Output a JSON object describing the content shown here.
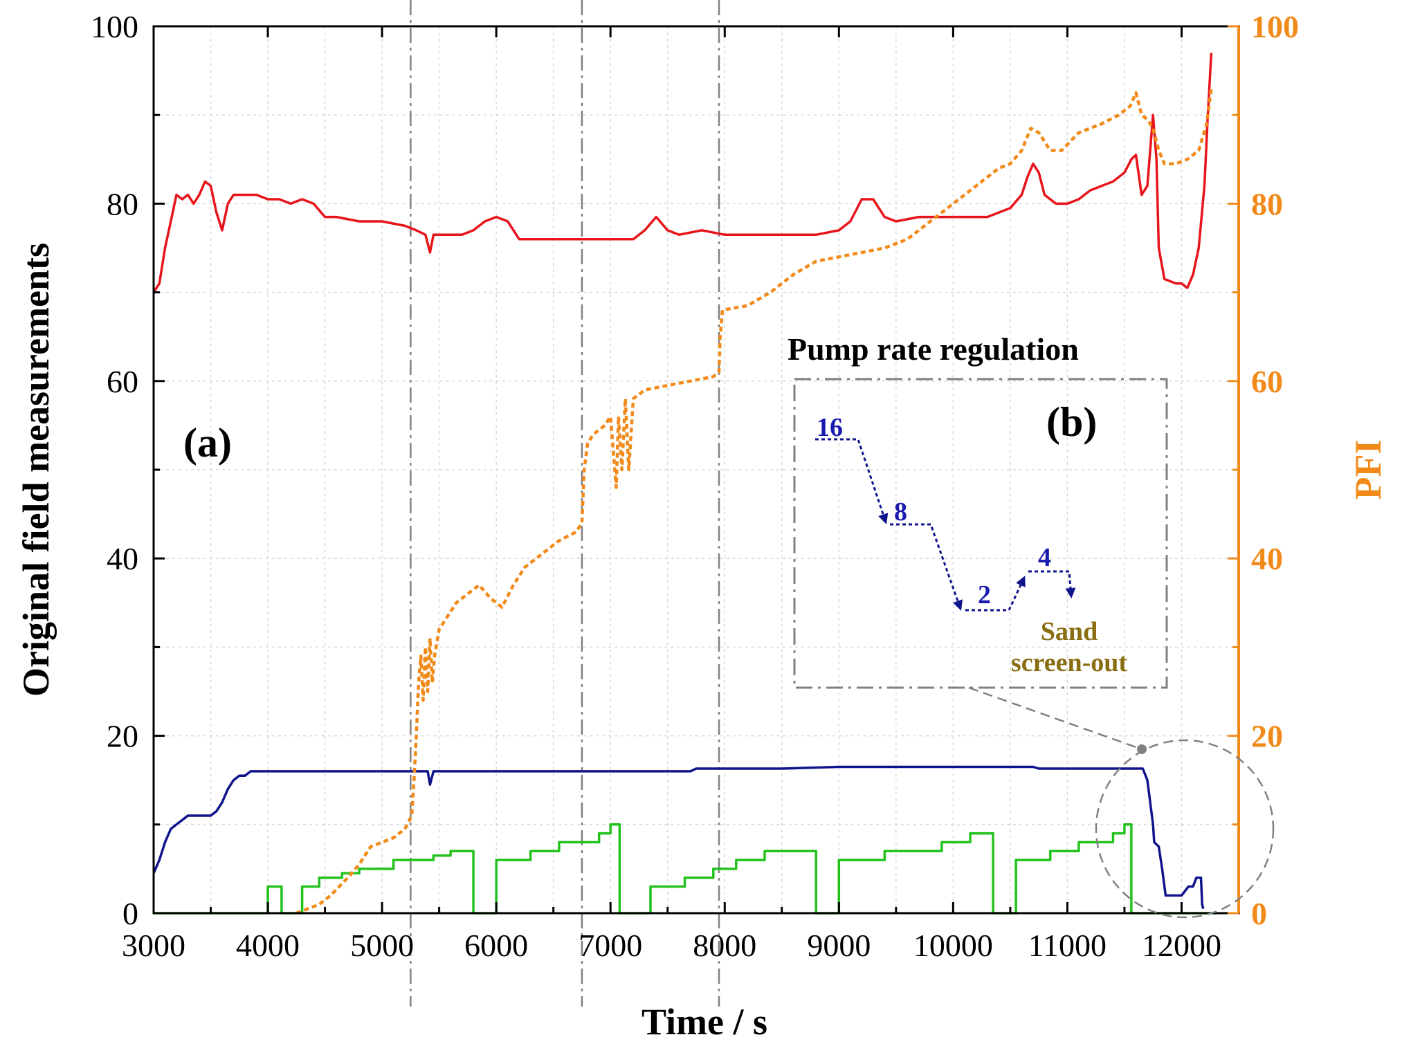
{
  "chart_data": {
    "type": "line",
    "title": "",
    "xlabel": "Time / s",
    "ylabel_left": "Original field measurements",
    "ylabel_right": "PFI",
    "xlim": [
      3000,
      12500
    ],
    "ylim_left": [
      0,
      100
    ],
    "ylim_right": [
      0,
      100
    ],
    "x_ticks": [
      "3000",
      "4000",
      "5000",
      "6000",
      "7000",
      "8000",
      "9000",
      "10000",
      "11000",
      "12000"
    ],
    "y_ticks_left": [
      "0",
      "20",
      "40",
      "60",
      "80",
      "100"
    ],
    "y_ticks_right": [
      "0",
      "20",
      "40",
      "60",
      "80",
      "100"
    ],
    "grid": true,
    "vertical_markers_x": [
      5250,
      6750,
      7950
    ],
    "colors": {
      "red_series": "#e8141b",
      "blue_series": "#10148c",
      "green_series": "#22c21c",
      "pfi_series": "#f28a1a",
      "right_axis": "#f28a1a",
      "grid": "#d8d8d8",
      "annotation": "#808080"
    },
    "series": [
      {
        "axis": "left",
        "color_key": "red_series",
        "style": "solid",
        "points": [
          [
            3000,
            70
          ],
          [
            3050,
            71
          ],
          [
            3100,
            75
          ],
          [
            3150,
            78
          ],
          [
            3200,
            81
          ],
          [
            3250,
            80.5
          ],
          [
            3300,
            81
          ],
          [
            3350,
            80
          ],
          [
            3400,
            81
          ],
          [
            3450,
            82.5
          ],
          [
            3500,
            82
          ],
          [
            3550,
            79
          ],
          [
            3600,
            77
          ],
          [
            3650,
            80
          ],
          [
            3700,
            81
          ],
          [
            3800,
            81
          ],
          [
            3900,
            81
          ],
          [
            4000,
            80.5
          ],
          [
            4100,
            80.5
          ],
          [
            4200,
            80
          ],
          [
            4300,
            80.5
          ],
          [
            4400,
            80
          ],
          [
            4500,
            78.5
          ],
          [
            4600,
            78.5
          ],
          [
            4800,
            78
          ],
          [
            5000,
            78
          ],
          [
            5200,
            77.5
          ],
          [
            5300,
            77
          ],
          [
            5380,
            76.5
          ],
          [
            5420,
            74.5
          ],
          [
            5450,
            76.5
          ],
          [
            5550,
            76.5
          ],
          [
            5700,
            76.5
          ],
          [
            5800,
            77
          ],
          [
            5900,
            78
          ],
          [
            6000,
            78.5
          ],
          [
            6100,
            78
          ],
          [
            6200,
            76
          ],
          [
            6400,
            76
          ],
          [
            6600,
            76
          ],
          [
            6800,
            76
          ],
          [
            7000,
            76
          ],
          [
            7200,
            76
          ],
          [
            7300,
            77
          ],
          [
            7400,
            78.5
          ],
          [
            7500,
            77
          ],
          [
            7600,
            76.5
          ],
          [
            7800,
            77
          ],
          [
            8000,
            76.5
          ],
          [
            8200,
            76.5
          ],
          [
            8400,
            76.5
          ],
          [
            8600,
            76.5
          ],
          [
            8800,
            76.5
          ],
          [
            9000,
            77
          ],
          [
            9100,
            78
          ],
          [
            9200,
            80.5
          ],
          [
            9300,
            80.5
          ],
          [
            9400,
            78.5
          ],
          [
            9500,
            78
          ],
          [
            9700,
            78.5
          ],
          [
            9900,
            78.5
          ],
          [
            10100,
            78.5
          ],
          [
            10300,
            78.5
          ],
          [
            10500,
            79.5
          ],
          [
            10600,
            81
          ],
          [
            10650,
            83
          ],
          [
            10700,
            84.5
          ],
          [
            10750,
            83.5
          ],
          [
            10800,
            81
          ],
          [
            10900,
            80
          ],
          [
            11000,
            80
          ],
          [
            11100,
            80.5
          ],
          [
            11200,
            81.5
          ],
          [
            11300,
            82
          ],
          [
            11400,
            82.5
          ],
          [
            11500,
            83.5
          ],
          [
            11560,
            85
          ],
          [
            11600,
            85.5
          ],
          [
            11650,
            81
          ],
          [
            11700,
            82
          ],
          [
            11750,
            90
          ],
          [
            11780,
            85
          ],
          [
            11800,
            75
          ],
          [
            11850,
            71.5
          ],
          [
            11950,
            71
          ],
          [
            12000,
            71
          ],
          [
            12050,
            70.5
          ],
          [
            12100,
            72
          ],
          [
            12150,
            75
          ],
          [
            12200,
            82
          ],
          [
            12230,
            90
          ],
          [
            12260,
            97
          ]
        ]
      },
      {
        "axis": "left",
        "color_key": "blue_series",
        "style": "solid",
        "points": [
          [
            3000,
            4.5
          ],
          [
            3050,
            6
          ],
          [
            3100,
            8
          ],
          [
            3150,
            9.5
          ],
          [
            3200,
            10
          ],
          [
            3250,
            10.5
          ],
          [
            3300,
            11
          ],
          [
            3400,
            11
          ],
          [
            3500,
            11
          ],
          [
            3550,
            11.5
          ],
          [
            3600,
            12.5
          ],
          [
            3650,
            14
          ],
          [
            3700,
            15
          ],
          [
            3750,
            15.5
          ],
          [
            3800,
            15.5
          ],
          [
            3850,
            16
          ],
          [
            4000,
            16
          ],
          [
            4500,
            16
          ],
          [
            5000,
            16
          ],
          [
            5400,
            16
          ],
          [
            5420,
            14.5
          ],
          [
            5450,
            16
          ],
          [
            6000,
            16
          ],
          [
            7000,
            16
          ],
          [
            7700,
            16
          ],
          [
            7750,
            16.3
          ],
          [
            8500,
            16.3
          ],
          [
            9000,
            16.5
          ],
          [
            10000,
            16.5
          ],
          [
            10700,
            16.5
          ],
          [
            10750,
            16.3
          ],
          [
            11000,
            16.3
          ],
          [
            11500,
            16.3
          ],
          [
            11660,
            16.3
          ],
          [
            11700,
            15
          ],
          [
            11720,
            13
          ],
          [
            11750,
            10
          ],
          [
            11760,
            8
          ],
          [
            11800,
            7.5
          ],
          [
            11830,
            5
          ],
          [
            11860,
            2
          ],
          [
            11900,
            2
          ],
          [
            11950,
            2
          ],
          [
            12000,
            2
          ],
          [
            12030,
            2.5
          ],
          [
            12060,
            3
          ],
          [
            12100,
            3
          ],
          [
            12130,
            4
          ],
          [
            12170,
            4
          ],
          [
            12180,
            1
          ],
          [
            12190,
            0.5
          ]
        ]
      },
      {
        "axis": "left",
        "color_key": "green_series",
        "style": "solid",
        "points": [
          [
            3000,
            0
          ],
          [
            4000,
            0
          ],
          [
            4000,
            3
          ],
          [
            4120,
            3
          ],
          [
            4120,
            0
          ],
          [
            4300,
            0
          ],
          [
            4300,
            3
          ],
          [
            4450,
            3
          ],
          [
            4450,
            4
          ],
          [
            4650,
            4
          ],
          [
            4650,
            4.5
          ],
          [
            4800,
            4.5
          ],
          [
            4800,
            5
          ],
          [
            5100,
            5
          ],
          [
            5100,
            6
          ],
          [
            5450,
            6
          ],
          [
            5450,
            6.5
          ],
          [
            5600,
            6.5
          ],
          [
            5600,
            7
          ],
          [
            5800,
            7
          ],
          [
            5800,
            0
          ],
          [
            6000,
            0
          ],
          [
            6000,
            6
          ],
          [
            6300,
            6
          ],
          [
            6300,
            7
          ],
          [
            6550,
            7
          ],
          [
            6550,
            8
          ],
          [
            6900,
            8
          ],
          [
            6900,
            9
          ],
          [
            7000,
            9
          ],
          [
            7000,
            10
          ],
          [
            7080,
            10
          ],
          [
            7080,
            0
          ],
          [
            7350,
            0
          ],
          [
            7350,
            3
          ],
          [
            7650,
            3
          ],
          [
            7650,
            4
          ],
          [
            7900,
            4
          ],
          [
            7900,
            5
          ],
          [
            8100,
            5
          ],
          [
            8100,
            6
          ],
          [
            8350,
            6
          ],
          [
            8350,
            7
          ],
          [
            8800,
            7
          ],
          [
            8800,
            0
          ],
          [
            9000,
            0
          ],
          [
            9000,
            6
          ],
          [
            9400,
            6
          ],
          [
            9400,
            7
          ],
          [
            9900,
            7
          ],
          [
            9900,
            8
          ],
          [
            10150,
            8
          ],
          [
            10150,
            9
          ],
          [
            10350,
            9
          ],
          [
            10350,
            0
          ],
          [
            10550,
            0
          ],
          [
            10550,
            6
          ],
          [
            10850,
            6
          ],
          [
            10850,
            7
          ],
          [
            11100,
            7
          ],
          [
            11100,
            8
          ],
          [
            11400,
            8
          ],
          [
            11400,
            9
          ],
          [
            11500,
            9
          ],
          [
            11500,
            10
          ],
          [
            11560,
            10
          ],
          [
            11560,
            0
          ],
          [
            12300,
            0
          ]
        ]
      },
      {
        "axis": "right",
        "color_key": "pfi_series",
        "style": "dotted",
        "points": [
          [
            4250,
            0
          ],
          [
            4450,
            1
          ],
          [
            4550,
            2
          ],
          [
            4700,
            4
          ],
          [
            4800,
            5.5
          ],
          [
            4900,
            7.5
          ],
          [
            5000,
            8
          ],
          [
            5100,
            8.5
          ],
          [
            5200,
            9.5
          ],
          [
            5260,
            11
          ],
          [
            5280,
            15
          ],
          [
            5300,
            20
          ],
          [
            5320,
            26
          ],
          [
            5340,
            29
          ],
          [
            5360,
            24
          ],
          [
            5380,
            30
          ],
          [
            5400,
            25
          ],
          [
            5420,
            31
          ],
          [
            5440,
            26
          ],
          [
            5460,
            29
          ],
          [
            5500,
            32
          ],
          [
            5550,
            33
          ],
          [
            5650,
            35
          ],
          [
            5750,
            36
          ],
          [
            5850,
            37
          ],
          [
            5950,
            35.5
          ],
          [
            6050,
            34.5
          ],
          [
            6150,
            37
          ],
          [
            6250,
            39
          ],
          [
            6350,
            40
          ],
          [
            6450,
            41
          ],
          [
            6550,
            42
          ],
          [
            6700,
            43
          ],
          [
            6750,
            44
          ],
          [
            6770,
            50
          ],
          [
            6800,
            53
          ],
          [
            6850,
            54
          ],
          [
            6950,
            55
          ],
          [
            7000,
            56
          ],
          [
            7050,
            48
          ],
          [
            7070,
            56
          ],
          [
            7100,
            50
          ],
          [
            7130,
            58
          ],
          [
            7160,
            50
          ],
          [
            7200,
            58
          ],
          [
            7300,
            59
          ],
          [
            7500,
            59.5
          ],
          [
            7700,
            60
          ],
          [
            7900,
            60.5
          ],
          [
            7950,
            61
          ],
          [
            7960,
            65
          ],
          [
            7980,
            68
          ],
          [
            8200,
            68.5
          ],
          [
            8400,
            70
          ],
          [
            8600,
            72
          ],
          [
            8800,
            73.5
          ],
          [
            9000,
            74
          ],
          [
            9200,
            74.5
          ],
          [
            9400,
            75
          ],
          [
            9600,
            76
          ],
          [
            9800,
            78
          ],
          [
            10000,
            80
          ],
          [
            10200,
            82
          ],
          [
            10400,
            84
          ],
          [
            10500,
            84.5
          ],
          [
            10600,
            86
          ],
          [
            10680,
            88.5
          ],
          [
            10750,
            88
          ],
          [
            10850,
            86
          ],
          [
            10950,
            86
          ],
          [
            11100,
            88
          ],
          [
            11300,
            89
          ],
          [
            11450,
            90
          ],
          [
            11550,
            91
          ],
          [
            11600,
            92.5
          ],
          [
            11650,
            90
          ],
          [
            11700,
            89.5
          ],
          [
            11750,
            88.5
          ],
          [
            11800,
            86
          ],
          [
            11850,
            84.5
          ],
          [
            11950,
            84.5
          ],
          [
            12050,
            85
          ],
          [
            12150,
            86
          ],
          [
            12220,
            89
          ],
          [
            12260,
            93
          ]
        ]
      }
    ],
    "panel_label_a": "(a)",
    "inset": {
      "title": "Pump rate regulation",
      "panel_label": "(b)",
      "steps": [
        "16",
        "8",
        "2",
        "4"
      ],
      "note_line1": "Sand",
      "note_line2": "screen-out"
    }
  }
}
